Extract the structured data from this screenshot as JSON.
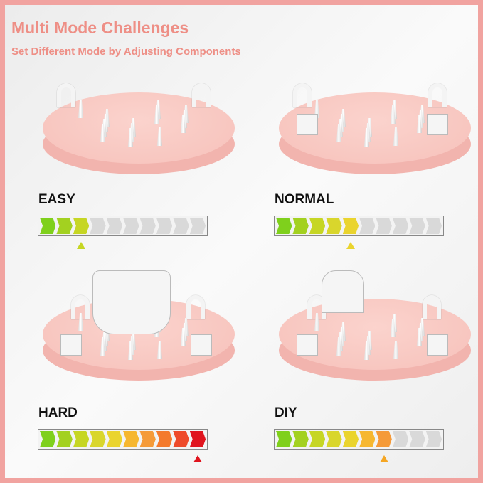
{
  "header": {
    "title": "Multi Mode Challenges",
    "subtitle": "Set Different Mode by Adjusting Components"
  },
  "segment_colors": [
    "#7fd01c",
    "#a3d120",
    "#c6d624",
    "#d9d62c",
    "#ead42e",
    "#f6b730",
    "#f59a38",
    "#f47a2c",
    "#ee4a2a",
    "#e0141e"
  ],
  "empty_color": "#d9d9d9",
  "modes": [
    {
      "label": "EASY",
      "level": 3,
      "max": 10,
      "marker_color": "#c6d624"
    },
    {
      "label": "NORMAL",
      "level": 5,
      "max": 10,
      "marker_color": "#ead42e"
    },
    {
      "label": "HARD",
      "level": 10,
      "max": 10,
      "marker_color": "#e0141e"
    },
    {
      "label": "DIY",
      "level": 7,
      "max": 10,
      "marker_color": "#f5a623"
    }
  ]
}
